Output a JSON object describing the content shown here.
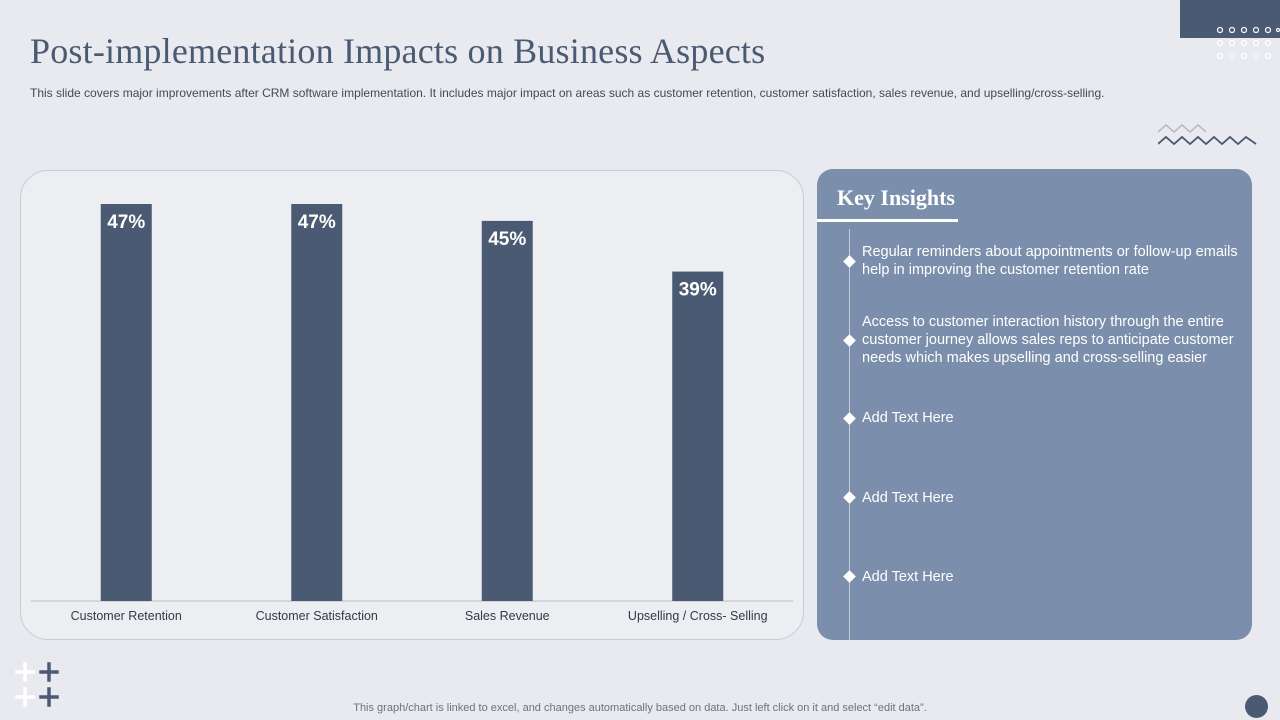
{
  "title": "Post-implementation Impacts on Business Aspects",
  "subtitle": "This slide covers major improvements after CRM software implementation. It includes major impact on areas such as customer retention, customer satisfaction, sales revenue, and upselling/cross-selling.",
  "colors": {
    "bar": "#4a5a72",
    "panel": "#7b8fac",
    "background": "#e8eaef",
    "accent": "#4a5a72"
  },
  "chart_data": {
    "type": "bar",
    "title": "",
    "categories": [
      "Customer Retention",
      "Customer Satisfaction",
      "Sales Revenue",
      "Upselling / Cross- Selling"
    ],
    "values": [
      47,
      47,
      45,
      39
    ],
    "data_labels": [
      "47%",
      "47%",
      "45%",
      "39%"
    ],
    "xlabel": "",
    "ylabel": "",
    "ylim": [
      0,
      47
    ],
    "grid": false,
    "unit": "%"
  },
  "insights": {
    "title": "Key Insights",
    "items": [
      "Regular reminders about appointments or follow-up emails help in improving the customer retention rate",
      "Access to customer interaction history through the entire customer journey allows sales reps to anticipate customer needs which makes upselling and cross-selling easier",
      "Add Text Here",
      "Add Text Here",
      "Add Text Here"
    ]
  },
  "footer": "This graph/chart is linked to excel, and changes automatically based on data. Just left click on it and select “edit data”."
}
